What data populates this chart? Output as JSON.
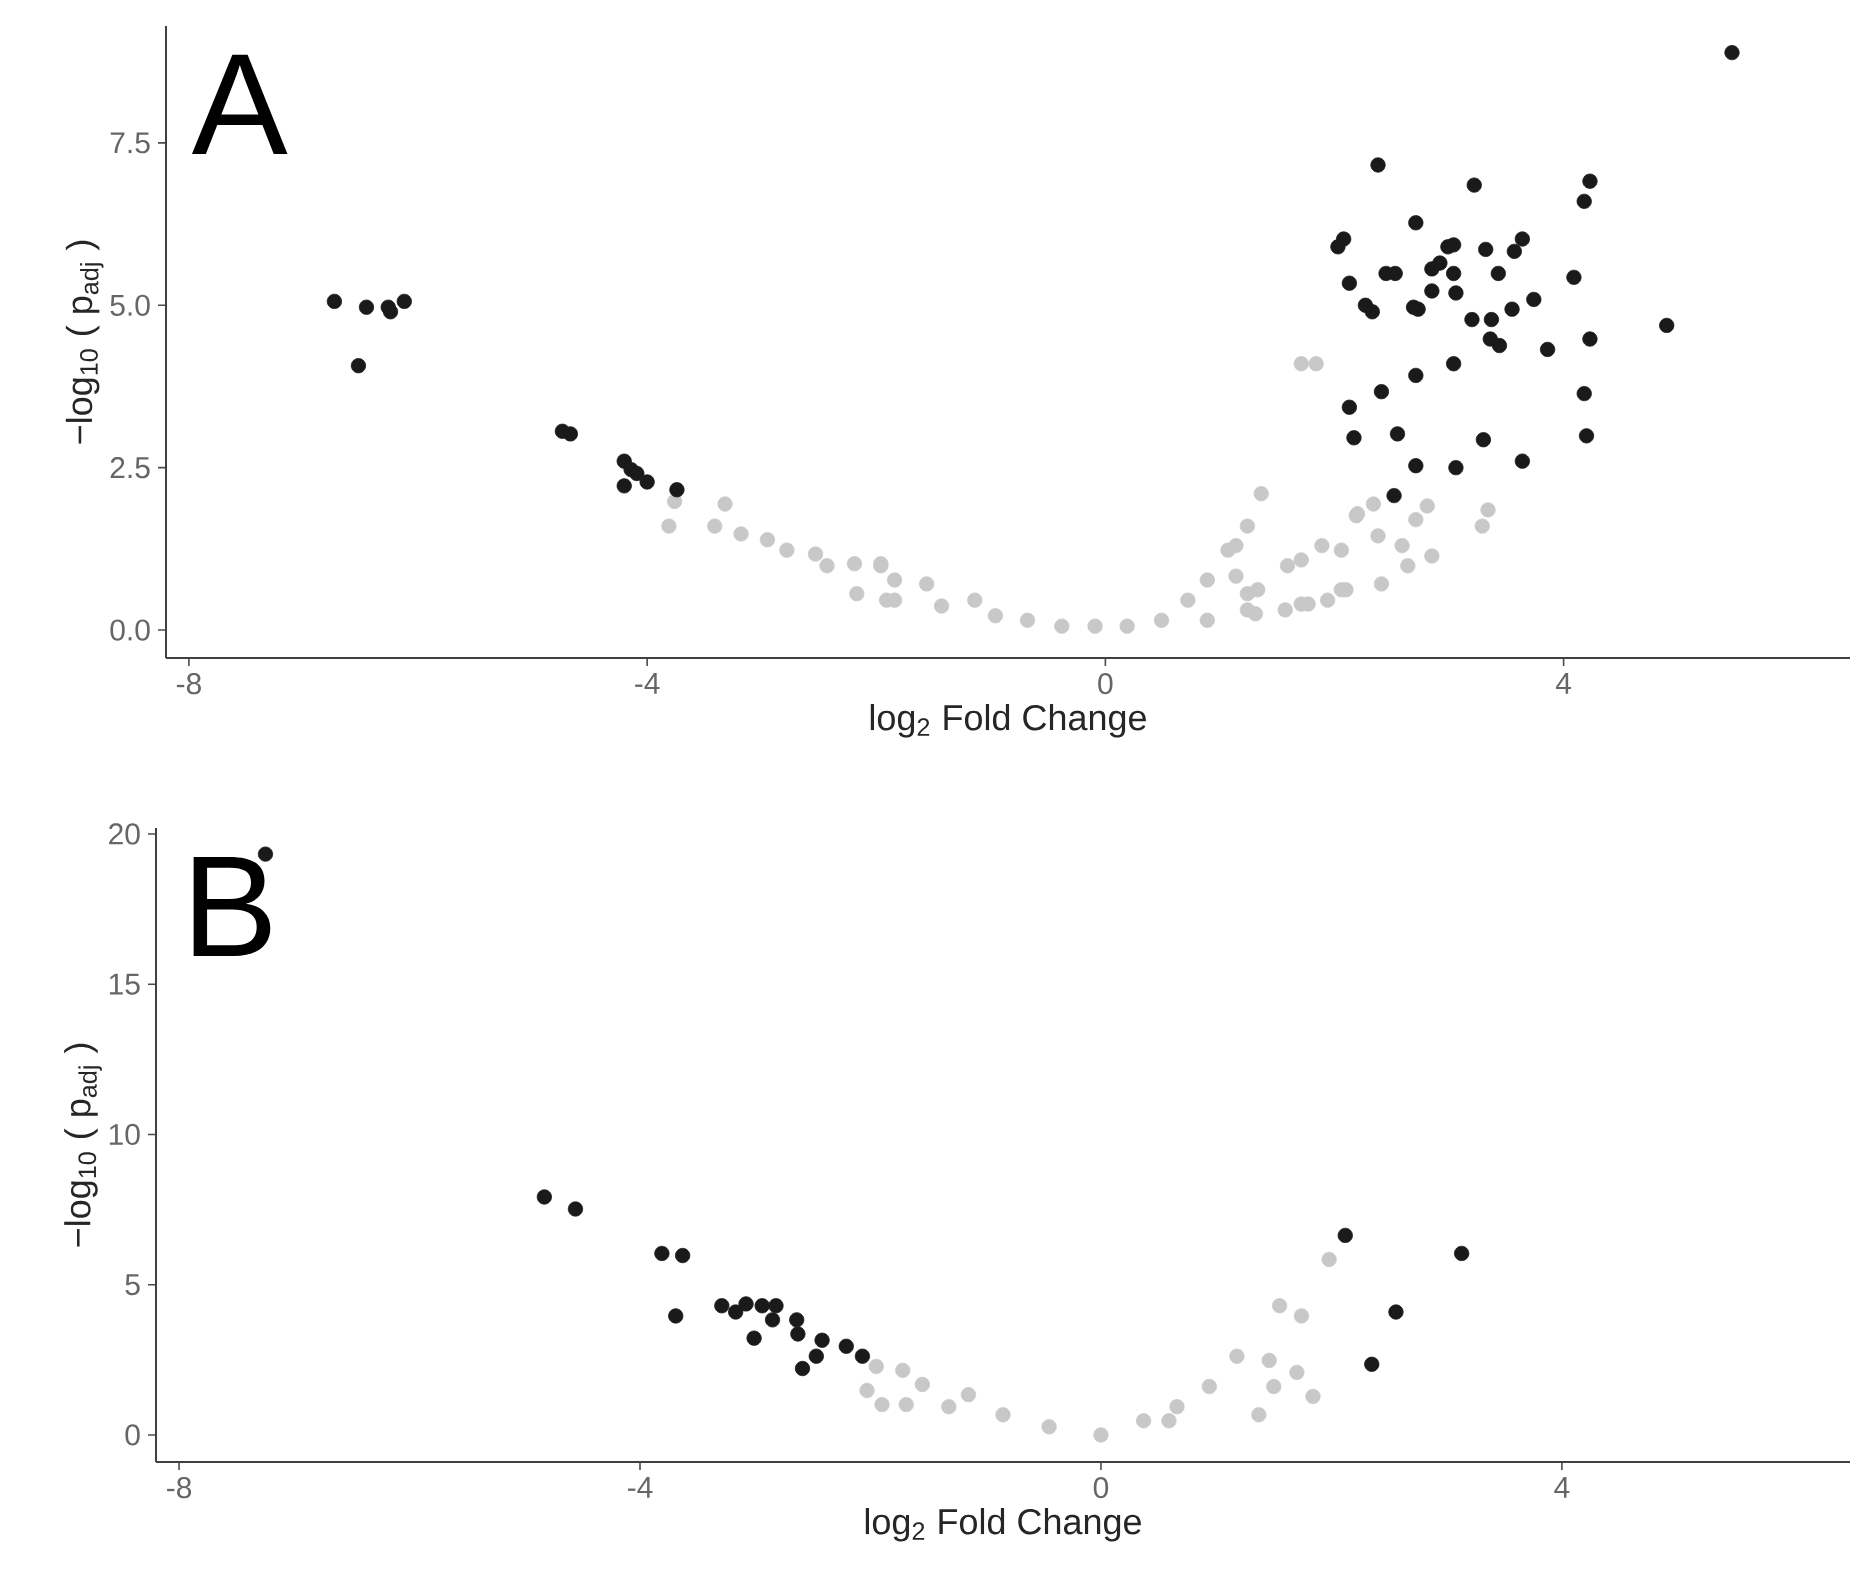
{
  "chart_data": [
    {
      "type": "scatter",
      "xlabel": "log$_{2}$ Fold Change",
      "ylabel": "−log$_{10}$ ( p$_{adj}$ )",
      "annotations": [
        "A"
      ],
      "marker": "circle",
      "xlim": [
        -8.2,
        6.5
      ],
      "ylim": [
        -0.43,
        9.3
      ],
      "xticks": [
        -8,
        -4,
        0,
        4
      ],
      "yticks": [
        {
          "value": 0,
          "label": "0.0"
        },
        2.5,
        {
          "value": 5,
          "label": "5.0"
        },
        7.5
      ],
      "series": [
        {
          "color": "#c8c8c8",
          "x": [
            -3.76,
            -3.81,
            -3.32,
            -3.41,
            -3.18,
            -2.95,
            -2.78,
            -2.53,
            -2.43,
            -2.19,
            -2.17,
            -1.96,
            -1.84,
            -1.56,
            -1.84,
            -1.43,
            -1.14,
            -0.96,
            -0.68,
            -0.38,
            -0.09,
            0.19,
            0.49,
            0.72,
            0.89,
            1.07,
            1.24,
            1.36,
            1.14,
            1.24,
            0.89,
            1.31,
            1.59,
            1.71,
            1.89,
            2.06,
            1.57,
            1.77,
            1.94,
            2.1,
            2.19,
            1.71,
            1.84,
            1.14,
            2.2,
            2.34,
            2.38,
            2.59,
            2.71,
            2.81,
            2.85,
            2.64,
            2.41,
            2.06,
            3.34,
            3.29,
            1.71,
            1.24,
            1.33,
            -1.91,
            -1.96
          ],
          "values": [
            1.98,
            1.6,
            1.94,
            1.6,
            1.48,
            1.39,
            1.23,
            1.17,
            0.99,
            1.02,
            0.56,
            0.99,
            0.77,
            0.71,
            0.46,
            0.37,
            0.46,
            0.22,
            0.15,
            0.06,
            0.06,
            0.06,
            0.15,
            0.46,
            0.77,
            1.23,
            1.6,
            2.1,
            0.83,
            0.56,
            0.15,
            0.25,
            0.99,
            1.08,
            1.3,
            1.23,
            0.31,
            0.4,
            0.46,
            0.62,
            1.76,
            4.1,
            4.1,
            1.3,
            1.79,
            1.94,
            1.45,
            1.3,
            1.7,
            1.91,
            1.14,
            0.99,
            0.71,
            0.62,
            1.85,
            1.6,
            0.4,
            0.31,
            0.62,
            0.46,
            1.02
          ]
        },
        {
          "color": "#1a1a1a",
          "x": [
            -6.73,
            -6.52,
            -6.45,
            -6.26,
            -6.24,
            -6.12,
            -4.74,
            -4.67,
            -4.2,
            -4.14,
            -4.2,
            -4.09,
            -4.0,
            -3.74,
            5.47,
            2.38,
            3.22,
            4.23,
            4.18,
            2.71,
            2.08,
            2.03,
            3.04,
            2.99,
            3.32,
            3.64,
            3.57,
            2.92,
            2.85,
            2.45,
            2.53,
            3.04,
            3.43,
            4.09,
            2.13,
            2.85,
            3.06,
            2.27,
            2.33,
            2.69,
            2.73,
            3.74,
            3.55,
            3.2,
            3.37,
            4.9,
            3.36,
            3.44,
            3.86,
            4.23,
            3.04,
            2.71,
            2.41,
            2.13,
            4.18,
            2.17,
            2.55,
            3.3,
            4.2,
            2.71,
            3.06,
            3.64,
            2.52
          ],
          "values": [
            5.06,
            4.07,
            4.97,
            4.97,
            4.9,
            5.06,
            3.06,
            3.02,
            2.6,
            2.47,
            2.22,
            2.41,
            2.28,
            2.16,
            8.89,
            7.16,
            6.85,
            6.91,
            6.6,
            6.27,
            6.02,
            5.9,
            5.93,
            5.9,
            5.86,
            6.02,
            5.83,
            5.65,
            5.56,
            5.49,
            5.49,
            5.49,
            5.49,
            5.43,
            5.34,
            5.22,
            5.19,
            5.0,
            4.9,
            4.97,
            4.94,
            5.09,
            4.94,
            4.78,
            4.78,
            4.69,
            4.48,
            4.38,
            4.32,
            4.48,
            4.1,
            3.92,
            3.67,
            3.43,
            3.64,
            2.96,
            3.02,
            2.93,
            2.99,
            2.53,
            2.5,
            2.6,
            2.07
          ]
        }
      ]
    },
    {
      "type": "scatter",
      "xlabel": "log$_{2}$ Fold Change",
      "ylabel": "−log$_{10}$ ( p$_{adj}$ )",
      "annotations": [
        "B"
      ],
      "marker": "circle",
      "xlim": [
        -8.2,
        6.5
      ],
      "ylim": [
        -0.9,
        20.2
      ],
      "xticks": [
        -8,
        -4,
        0,
        4
      ],
      "yticks": [
        0,
        5,
        10,
        15,
        20
      ],
      "series": [
        {
          "color": "#c8c8c8",
          "x": [
            1.98,
            1.55,
            1.74,
            1.46,
            1.7,
            1.84,
            1.5,
            1.37,
            1.18,
            0.94,
            0.66,
            0.37,
            0.0,
            -0.45,
            -0.85,
            -1.15,
            -1.32,
            -1.55,
            -1.95,
            -2.03,
            -1.9,
            -1.69,
            -1.72,
            0.59
          ],
          "values": [
            5.84,
            4.3,
            3.96,
            2.48,
            2.08,
            1.28,
            1.61,
            0.67,
            2.62,
            1.61,
            0.94,
            0.47,
            0.0,
            0.27,
            0.67,
            1.34,
            0.94,
            1.68,
            2.28,
            1.48,
            1.01,
            1.01,
            2.15,
            0.47
          ]
        },
        {
          "color": "#1a1a1a",
          "x": [
            -7.25,
            -4.83,
            -4.56,
            -3.81,
            -3.63,
            -3.69,
            -3.29,
            -3.08,
            -3.17,
            -2.94,
            -2.85,
            -2.82,
            -3.01,
            -2.64,
            -2.63,
            -2.42,
            -2.59,
            -2.47,
            -2.21,
            -2.07,
            2.12,
            3.13,
            2.56,
            2.35
          ],
          "values": [
            19.33,
            7.92,
            7.52,
            6.04,
            5.97,
            3.96,
            4.3,
            4.36,
            4.09,
            4.3,
            3.83,
            4.3,
            3.22,
            3.83,
            3.36,
            3.15,
            2.21,
            2.62,
            2.95,
            2.62,
            6.64,
            6.04,
            4.09,
            2.35
          ]
        }
      ]
    }
  ]
}
